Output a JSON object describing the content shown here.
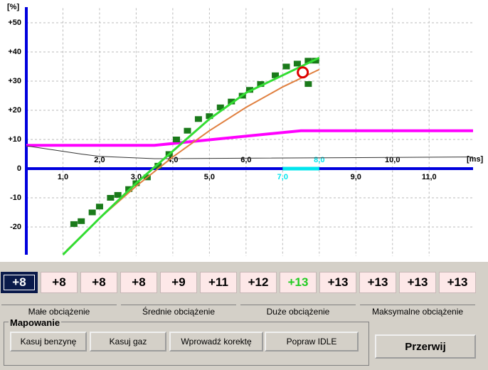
{
  "chart": {
    "type": "line",
    "y_unit": "[%]",
    "x_unit": "[ms]",
    "xlim": [
      0,
      12.2
    ],
    "ylim": [
      -30,
      55
    ],
    "yticks": [
      {
        "value": 50,
        "label": "+50"
      },
      {
        "value": 40,
        "label": "+40"
      },
      {
        "value": 30,
        "label": "+30"
      },
      {
        "value": 20,
        "label": "+20"
      },
      {
        "value": 10,
        "label": "+10"
      },
      0,
      {
        "value": -10,
        "label": "-10"
      },
      {
        "value": -20,
        "label": "-20"
      }
    ],
    "xticks_lower": [
      {
        "value": 1,
        "label": "1,0"
      },
      {
        "value": 3,
        "label": "3,0"
      },
      {
        "value": 5,
        "label": "5,0"
      },
      {
        "value": 7,
        "label": "7,0"
      },
      {
        "value": 9,
        "label": "9,0"
      },
      {
        "value": 11,
        "label": "11,0"
      }
    ],
    "xticks_upper": [
      {
        "value": 2,
        "label": "2,0"
      },
      {
        "value": 4,
        "label": "4,0"
      },
      {
        "value": 6,
        "label": "6,0"
      },
      {
        "value": 8,
        "label": "8,0"
      },
      {
        "value": 10,
        "label": "10,0"
      }
    ],
    "highlight": {
      "xrange": [
        7,
        8
      ],
      "color": "#00e5ee"
    },
    "grid": true,
    "series": [
      {
        "kind": "line",
        "color": "#ff00ff",
        "width": 4,
        "x": [
          0,
          3.5,
          7.5,
          12.2
        ],
        "values": [
          8,
          8,
          13,
          13
        ]
      },
      {
        "kind": "line",
        "color": "#333333",
        "width": 1,
        "x": [
          0,
          1.5,
          2.0,
          3.5,
          12.2
        ],
        "values": [
          7.8,
          5,
          4.2,
          3.4,
          4
        ]
      },
      {
        "kind": "scatter",
        "color": "#1a7a1a",
        "x": [
          1.3,
          1.5,
          1.8,
          2.0,
          2.3,
          2.5,
          2.8,
          3.0,
          3.3,
          3.6,
          3.9,
          4.1,
          4.4,
          4.7,
          5.0,
          5.3,
          5.6,
          5.9,
          6.1,
          6.4,
          6.8,
          7.1,
          7.4,
          7.7,
          7.9,
          7.7
        ],
        "values": [
          -19,
          -18,
          -15,
          -13,
          -10,
          -9,
          -7,
          -5,
          -3,
          1,
          5,
          10,
          13,
          17,
          18,
          21,
          23,
          25,
          27,
          29,
          32,
          35,
          36,
          37,
          37,
          29
        ]
      },
      {
        "kind": "line",
        "color": "#e08040",
        "width": 2,
        "x": [
          1.1,
          2,
          3,
          4,
          5,
          6,
          7,
          8
        ],
        "values": [
          -28,
          -17,
          -6,
          4,
          13,
          21,
          28,
          34
        ]
      },
      {
        "kind": "line",
        "color": "#33dd33",
        "width": 3,
        "x": [
          1.0,
          2,
          3,
          4,
          5,
          6,
          7,
          8
        ],
        "values": [
          -29.5,
          -17,
          -5,
          6,
          17,
          26,
          32,
          38
        ]
      },
      {
        "kind": "circle",
        "color": "#dd0000",
        "x": [
          7.55
        ],
        "values": [
          33
        ]
      }
    ]
  },
  "cells": [
    "+8",
    "+8",
    "+8",
    "+8",
    "+9",
    "+11",
    "+12",
    "+13",
    "+13",
    "+13",
    "+13",
    "+13"
  ],
  "selected_cell": 0,
  "green_cell": 7,
  "groups": [
    "Małe obciążenie",
    "Średnie obciążenie",
    "Duże obciążenie",
    "Maksymalne obciążenie"
  ],
  "panel": {
    "title": "Mapowanie",
    "buttons": [
      "Kasuj benzynę",
      "Kasuj gaz",
      "Wprowadź korektę",
      "Popraw IDLE"
    ]
  },
  "stop_button": "Przerwij"
}
